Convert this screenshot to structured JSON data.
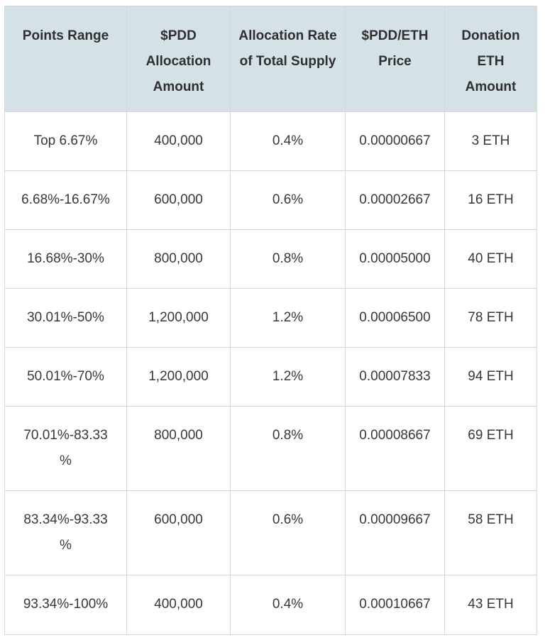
{
  "table": {
    "headers": [
      "Points Range",
      "$PDD Allocation Amount",
      "Allocation Rate of Total Supply",
      "$PDD/ETH Price",
      "Donation ETH Amount"
    ],
    "rows": [
      [
        "Top 6.67%",
        "400,000",
        "0.4%",
        "0.00000667",
        "3 ETH"
      ],
      [
        "6.68%-16.67%",
        "600,000",
        "0.6%",
        "0.00002667",
        "16 ETH"
      ],
      [
        "16.68%-30%",
        "800,000",
        "0.8%",
        "0.00005000",
        "40 ETH"
      ],
      [
        "30.01%-50%",
        "1,200,000",
        "1.2%",
        "0.00006500",
        "78 ETH"
      ],
      [
        "50.01%-70%",
        "1,200,000",
        "1.2%",
        "0.00007833",
        "94 ETH"
      ],
      [
        "70.01%-83.33%",
        "800,000",
        "0.8%",
        "0.00008667",
        "69 ETH"
      ],
      [
        "83.34%-93.33%",
        "600,000",
        "0.6%",
        "0.00009667",
        "58 ETH"
      ],
      [
        "93.34%-100%",
        "400,000",
        "0.4%",
        "0.00010667",
        "43 ETH"
      ]
    ]
  }
}
